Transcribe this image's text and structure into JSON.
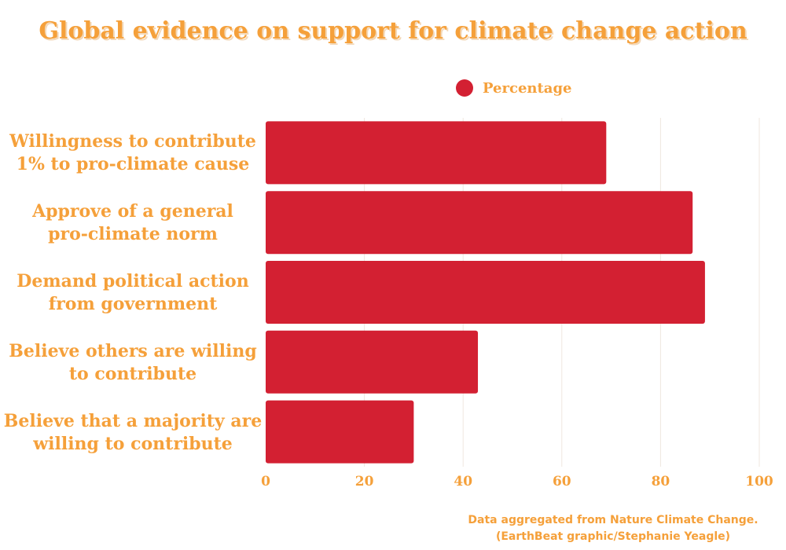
{
  "title": "Global evidence on support for climate change action",
  "legend": {
    "label": "Percentage",
    "color": "#D32032"
  },
  "footer": {
    "line1": "Data aggregated from Nature Climate Change.",
    "line2": "(EarthBeat graphic/Stephanie Yeagle)"
  },
  "colors": {
    "accent": "#F5A03A",
    "bar": "#D32032",
    "grid": "#efe7df"
  },
  "chart_data": {
    "type": "bar",
    "orientation": "horizontal",
    "categories": [
      [
        "Willingness to contribute",
        "1% to pro-climate cause"
      ],
      [
        "Approve of a general",
        "pro-climate norm"
      ],
      [
        "Demand political action",
        "from government"
      ],
      [
        "Believe others are willing",
        "to contribute"
      ],
      [
        "Believe that a majority are",
        "willing to contribute"
      ]
    ],
    "series": [
      {
        "name": "Percentage",
        "values": [
          69,
          86.5,
          89,
          43,
          30
        ]
      }
    ],
    "xlim": [
      0,
      100
    ],
    "xticks": [
      0,
      20,
      40,
      60,
      80,
      100
    ],
    "grid": true,
    "legend_position": "top"
  }
}
